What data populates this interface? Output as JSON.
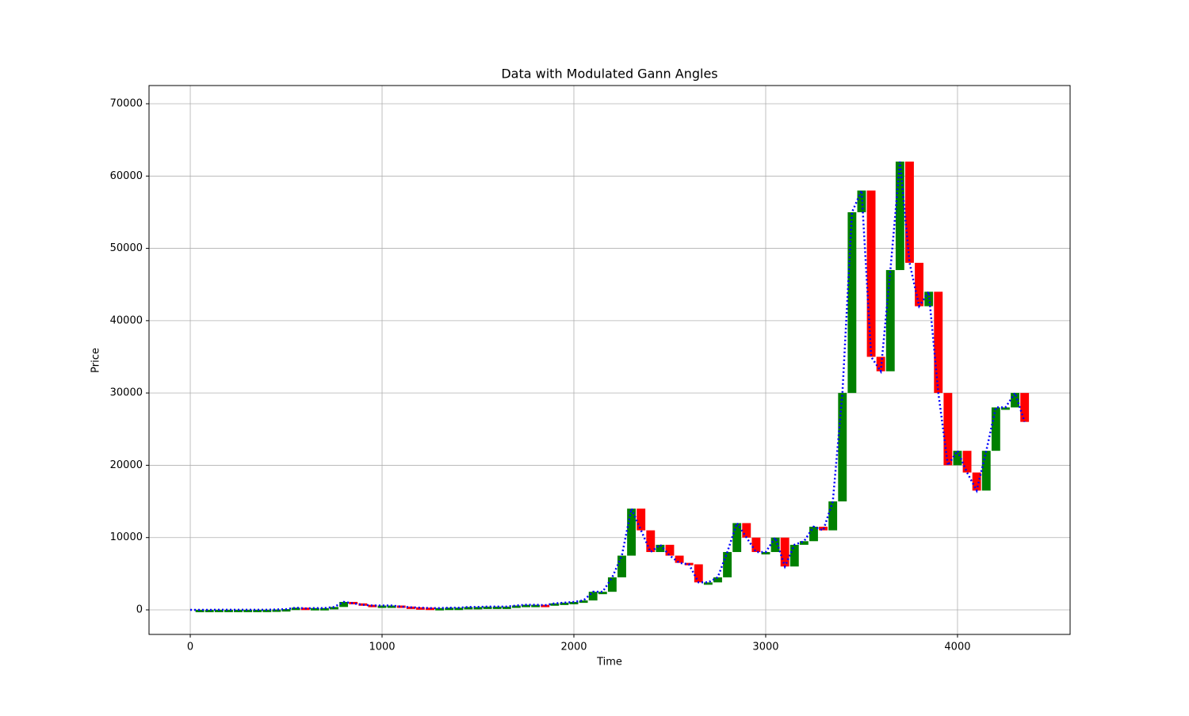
{
  "chart_data": {
    "type": "candlestick",
    "title": "Data with Modulated Gann Angles",
    "xlabel": "Time",
    "ylabel": "Price",
    "x": [
      0,
      50,
      100,
      150,
      200,
      250,
      300,
      350,
      400,
      450,
      500,
      550,
      600,
      650,
      700,
      750,
      800,
      850,
      900,
      950,
      1000,
      1050,
      1100,
      1150,
      1200,
      1250,
      1300,
      1350,
      1400,
      1450,
      1500,
      1550,
      1600,
      1650,
      1700,
      1750,
      1800,
      1850,
      1900,
      1950,
      2000,
      2050,
      2100,
      2150,
      2200,
      2250,
      2300,
      2350,
      2400,
      2450,
      2500,
      2550,
      2600,
      2650,
      2700,
      2750,
      2800,
      2850,
      2900,
      2950,
      3000,
      3050,
      3100,
      3150,
      3200,
      3250,
      3300,
      3350,
      3400,
      3450,
      3500,
      3550,
      3600,
      3650,
      3700,
      3750,
      3800,
      3850,
      3900,
      3950,
      4000,
      4050,
      4100,
      4150,
      4200,
      4250,
      4300,
      4350
    ],
    "values": [
      5,
      5,
      5,
      10,
      10,
      10,
      10,
      10,
      15,
      50,
      100,
      300,
      200,
      250,
      250,
      400,
      1100,
      900,
      700,
      600,
      600,
      600,
      450,
      350,
      300,
      250,
      250,
      300,
      300,
      400,
      400,
      450,
      450,
      450,
      600,
      700,
      700,
      650,
      900,
      1000,
      1100,
      1300,
      2500,
      2500,
      4500,
      7500,
      14000,
      11000,
      8000,
      9000,
      7500,
      6500,
      6300,
      3800,
      3800,
      4500,
      8000,
      12000,
      10000,
      8000,
      8000,
      10000,
      6000,
      9000,
      9500,
      11500,
      11000,
      15000,
      30000,
      55000,
      58000,
      35000,
      33000,
      47000,
      62000,
      48000,
      42000,
      44000,
      30000,
      20000,
      22000,
      19000,
      16500,
      22000,
      28000,
      28000,
      30000,
      26000
    ],
    "up_color": "#008000",
    "down_color": "#ff0000",
    "line_color": "#0000ff",
    "xlim": [
      -215,
      4587
    ],
    "xticks": [
      0,
      1000,
      2000,
      3000,
      4000
    ],
    "ylim": [
      -3396,
      72520
    ],
    "yticks": [
      0,
      10000,
      20000,
      30000,
      40000,
      50000,
      60000,
      70000
    ],
    "grid": true
  }
}
